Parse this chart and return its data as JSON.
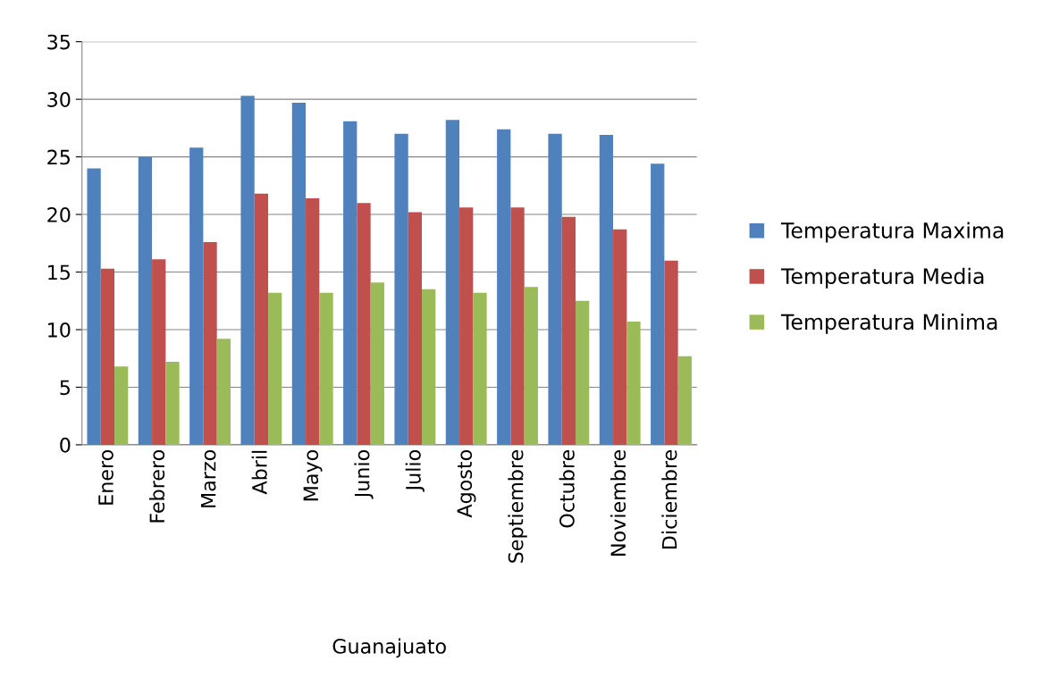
{
  "chart_data": {
    "type": "bar",
    "xlabel": "Guanajuato",
    "categories": [
      "Enero",
      "Febrero",
      "Marzo",
      "Abril",
      "Mayo",
      "Junio",
      "Julio",
      "Agosto",
      "Septiembre",
      "Octubre",
      "Noviembre",
      "Diciembre"
    ],
    "series": [
      {
        "name": "Temperatura Maxima",
        "color": "#4f81bd",
        "values": [
          24.0,
          25.0,
          25.8,
          30.3,
          29.7,
          28.1,
          27.0,
          28.2,
          27.4,
          27.0,
          26.9,
          24.4
        ]
      },
      {
        "name": "Temperatura Media",
        "color": "#c0504d",
        "values": [
          15.3,
          16.1,
          17.6,
          21.8,
          21.4,
          21.0,
          20.2,
          20.6,
          20.6,
          19.8,
          18.7,
          16.0
        ]
      },
      {
        "name": "Temperatura Minima",
        "color": "#9bbb59",
        "values": [
          6.8,
          7.2,
          9.2,
          13.2,
          13.2,
          14.1,
          13.5,
          13.2,
          13.7,
          12.5,
          10.7,
          7.7
        ]
      }
    ],
    "ylim": [
      0,
      35
    ],
    "yticks": [
      0,
      5,
      10,
      15,
      20,
      25,
      30,
      35
    ],
    "grid": "y",
    "legend": "right"
  }
}
